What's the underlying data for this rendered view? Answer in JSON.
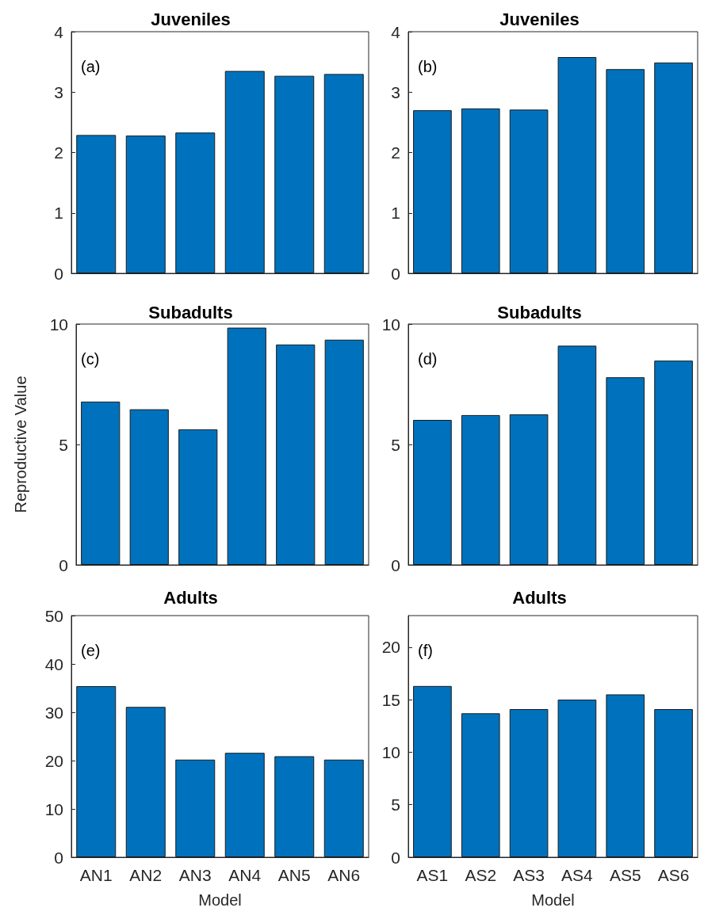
{
  "chart_data": [
    {
      "type": "bar",
      "title": "Juveniles",
      "categories": [
        null,
        null,
        null,
        null,
        null,
        null
      ],
      "values": [
        2.29,
        2.28,
        2.33,
        3.35,
        3.27,
        3.3
      ],
      "color": "#0072bd",
      "ylim": [
        0,
        4
      ],
      "yticks": [
        0,
        1,
        2,
        3,
        4
      ],
      "tick_labels": "y",
      "annotations": [
        "(a)"
      ]
    },
    {
      "type": "bar",
      "title": "Juveniles",
      "categories": [
        null,
        null,
        null,
        null,
        null,
        null
      ],
      "values": [
        2.7,
        2.73,
        2.71,
        3.58,
        3.38,
        3.49
      ],
      "color": "#0072bd",
      "ylim": [
        0,
        4
      ],
      "yticks": [
        0,
        1,
        2,
        3,
        4
      ],
      "tick_labels": "y",
      "annotations": [
        "(b)"
      ]
    },
    {
      "type": "bar",
      "title": "Subadults",
      "ylabel": "Reproductive Value",
      "categories": [
        null,
        null,
        null,
        null,
        null,
        null
      ],
      "values": [
        6.78,
        6.46,
        5.63,
        9.85,
        9.15,
        9.35
      ],
      "color": "#0072bd",
      "ylim": [
        0,
        10
      ],
      "yticks": [
        0,
        5,
        10
      ],
      "tick_labels": "y",
      "annotations": [
        "(c)"
      ]
    },
    {
      "type": "bar",
      "title": "Subadults",
      "categories": [
        null,
        null,
        null,
        null,
        null,
        null
      ],
      "values": [
        6.02,
        6.22,
        6.25,
        9.1,
        7.79,
        8.48
      ],
      "color": "#0072bd",
      "ylim": [
        0,
        10
      ],
      "yticks": [
        0,
        5,
        10
      ],
      "tick_labels": "y",
      "annotations": [
        "(d)"
      ]
    },
    {
      "type": "bar",
      "title": "Adults",
      "xlabel": "Model",
      "categories": [
        "AN1",
        "AN2",
        "AN3",
        "AN4",
        "AN5",
        "AN6"
      ],
      "values": [
        35.4,
        31.1,
        20.2,
        21.6,
        20.9,
        20.2
      ],
      "color": "#0072bd",
      "ylim": [
        0,
        50
      ],
      "yticks": [
        0,
        10,
        20,
        30,
        40,
        50
      ],
      "annotations": [
        "(e)"
      ]
    },
    {
      "type": "bar",
      "title": "Adults",
      "xlabel": "Model",
      "categories": [
        "AS1",
        "AS2",
        "AS3",
        "AS4",
        "AS5",
        "AS6"
      ],
      "values": [
        16.3,
        13.7,
        14.1,
        15,
        15.5,
        14.1
      ],
      "color": "#0072bd",
      "ylim": [
        0,
        23
      ],
      "yticks": [
        0,
        5,
        10,
        15,
        20
      ],
      "annotations": [
        "(f)"
      ]
    }
  ]
}
